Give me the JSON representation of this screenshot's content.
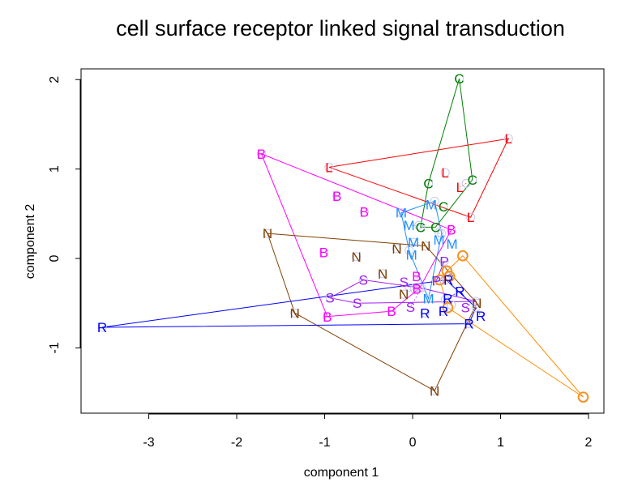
{
  "chart_data": {
    "type": "scatter",
    "title": "cell surface receptor linked signal transduction",
    "xlabel": "component 1",
    "ylabel": "component 2",
    "xlim": [
      -3.77,
      2.175
    ],
    "ylim": [
      -1.73,
      2.12
    ],
    "xticks": [
      -3,
      -2,
      -1,
      0,
      1,
      2
    ],
    "yticks": [
      -1,
      0,
      1,
      2
    ],
    "grid": false,
    "hulls": true,
    "series": [
      {
        "name": "C",
        "color": "#008000",
        "x": [
          0.53,
          0.68,
          0.18,
          0.35,
          0.26,
          0.09
        ],
        "y": [
          2.01,
          0.88,
          0.84,
          0.58,
          0.35,
          0.35
        ]
      },
      {
        "name": "L",
        "color": "#FF0000",
        "x": [
          1.09,
          -0.95,
          0.37,
          0.61,
          0.66
        ],
        "y": [
          1.34,
          1.02,
          0.96,
          0.84,
          0.46
        ]
      },
      {
        "name": "B",
        "color": "#FF00FF",
        "x": [
          -1.72,
          -0.86,
          -0.55,
          0.44,
          -1.01,
          -0.97,
          -0.24,
          0.02,
          0.08
        ],
        "y": [
          1.17,
          0.7,
          0.52,
          0.32,
          0.07,
          -0.65,
          -0.59,
          -0.34,
          -0.33
        ]
      },
      {
        "name": "M",
        "color": "#1E90FF",
        "x": [
          -0.13,
          0.25,
          0.07,
          0.3,
          0.01,
          -0.04,
          0.18,
          0.33
        ],
        "y": [
          0.51,
          0.64,
          0.37,
          0.29,
          0.18,
          0.09,
          -0.45,
          0.28
        ]
      },
      {
        "name": "N",
        "color": "#804000",
        "x": [
          -1.65,
          -0.64,
          -0.34,
          -0.18,
          0.15,
          -0.1,
          -1.34,
          0.25,
          0.73
        ],
        "y": [
          0.28,
          0.02,
          -0.17,
          0.11,
          0.14,
          -0.4,
          -0.61,
          -1.48,
          -0.5
        ]
      },
      {
        "name": "S",
        "color": "#A020F0",
        "x": [
          -0.94,
          -0.56,
          -0.63,
          -0.04,
          0.1,
          0.72
        ],
        "y": [
          -0.44,
          -0.24,
          -0.5,
          -0.32,
          -0.33,
          -0.48
        ]
      },
      {
        "name": "P",
        "color": "#8A2BE2",
        "x": [
          0.36,
          0.27
        ],
        "y": [
          -0.03,
          -0.25
        ]
      },
      {
        "name": "R",
        "color": "#0000FF",
        "x": [
          -3.53,
          0.38,
          0.14,
          0.35,
          0.44,
          0.72,
          0.64,
          0.37
        ],
        "y": [
          -0.77,
          -0.24,
          -0.61,
          -0.59,
          -0.52,
          -0.55,
          -0.73,
          -0.46
        ]
      },
      {
        "name": "O",
        "color": "#FF8C00",
        "x": [
          0.57,
          1.94,
          0.39,
          0.42,
          0.31,
          0.4
        ],
        "y": [
          0.03,
          -1.55,
          -0.14,
          -0.2,
          -0.24,
          -0.55
        ]
      }
    ]
  }
}
